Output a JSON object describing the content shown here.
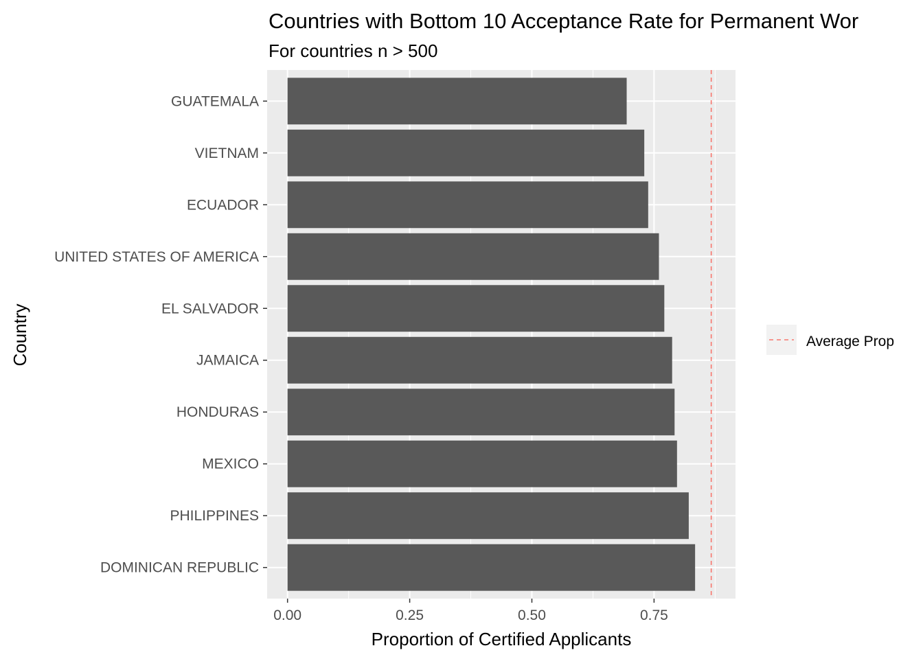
{
  "chart_data": {
    "type": "bar",
    "orientation": "horizontal",
    "title": "Countries with Bottom 10 Acceptance Rate for Permanent Wor",
    "subtitle": "For countries n > 500",
    "xlabel": "Proportion of Certified Applicants",
    "ylabel": "Country",
    "categories": [
      "GUATEMALA",
      "VIETNAM",
      "ECUADOR",
      "UNITED STATES OF AMERICA",
      "EL SALVADOR",
      "JAMAICA",
      "HONDURAS",
      "MEXICO",
      "PHILIPPINES",
      "DOMINICAN REPUBLIC"
    ],
    "values": [
      0.694,
      0.73,
      0.738,
      0.76,
      0.771,
      0.787,
      0.792,
      0.797,
      0.821,
      0.834
    ],
    "xlim": [
      -0.0417,
      0.9167
    ],
    "xticks": [
      0,
      0.25,
      0.5,
      0.75
    ],
    "xtick_labels": [
      "0.00",
      "0.25",
      "0.50",
      "0.75"
    ],
    "reference_line": {
      "label": "Average Prop",
      "value": 0.867,
      "style": "dashed",
      "color": "#F8766D"
    },
    "bar_color": "#595959",
    "panel_background": "#EBEBEB",
    "grid": true,
    "legend_position": "right"
  }
}
